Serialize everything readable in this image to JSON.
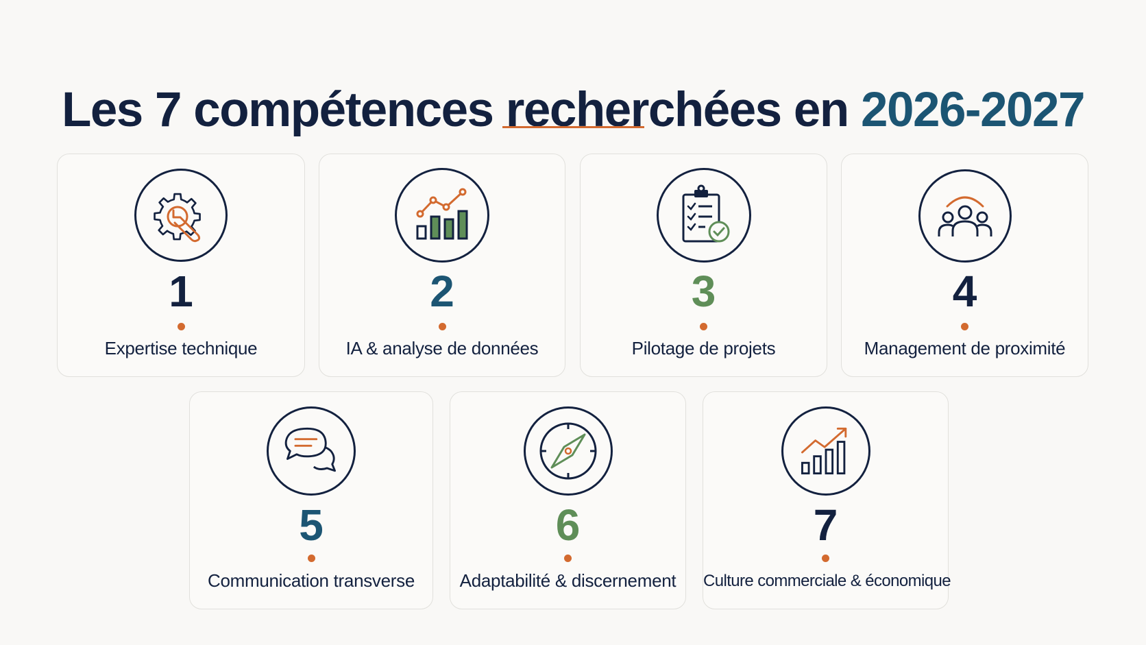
{
  "title": {
    "main": "Les 7 compétences recherchées en ",
    "year": "2026-2027"
  },
  "colors": {
    "navy": "#13213f",
    "teal": "#1c5573",
    "green": "#5f8e58",
    "orange": "#d36a2f"
  },
  "skills": [
    {
      "number": "1",
      "label": "Expertise technique",
      "icon": "gear-wrench-icon",
      "number_color": "#13213f"
    },
    {
      "number": "2",
      "label": "IA & analyse de données",
      "icon": "analytics-chart-icon",
      "number_color": "#1c5573"
    },
    {
      "number": "3",
      "label": "Pilotage de projets",
      "icon": "clipboard-check-icon",
      "number_color": "#5f8e58"
    },
    {
      "number": "4",
      "label": "Management de proximité",
      "icon": "team-icon",
      "number_color": "#13213f"
    },
    {
      "number": "5",
      "label": "Communication transverse",
      "icon": "chat-bubbles-icon",
      "number_color": "#1c5573"
    },
    {
      "number": "6",
      "label": "Adaptabilité & discernement",
      "icon": "compass-icon",
      "number_color": "#5f8e58"
    },
    {
      "number": "7",
      "label": "Culture commerciale & économique",
      "icon": "growth-chart-icon",
      "number_color": "#13213f"
    }
  ]
}
